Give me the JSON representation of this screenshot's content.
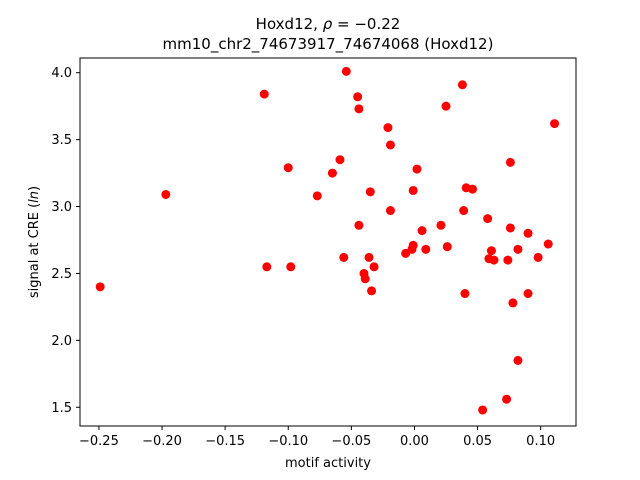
{
  "chart_data": {
    "type": "scatter",
    "title_line1_prefix": "Hoxd12, ",
    "title_line1_rho_symbol": "ρ",
    "title_line1_rho_value": " = −0.22",
    "title_line2": "mm10_chr2_74673917_74674068 (Hoxd12)",
    "xlabel": "motif activity",
    "ylabel_prefix": "signal at CRE (",
    "ylabel_italic": "ln",
    "ylabel_suffix": ")",
    "xlim": [
      -0.265,
      0.128
    ],
    "ylim": [
      1.36,
      4.11
    ],
    "x_ticks": [
      {
        "value": -0.25,
        "label": "−0.25"
      },
      {
        "value": -0.2,
        "label": "−0.20"
      },
      {
        "value": -0.15,
        "label": "−0.15"
      },
      {
        "value": -0.1,
        "label": "−0.10"
      },
      {
        "value": -0.05,
        "label": "−0.05"
      },
      {
        "value": 0.0,
        "label": "0.00"
      },
      {
        "value": 0.05,
        "label": "0.05"
      },
      {
        "value": 0.1,
        "label": "0.10"
      }
    ],
    "y_ticks": [
      {
        "value": 1.5,
        "label": "1.5"
      },
      {
        "value": 2.0,
        "label": "2.0"
      },
      {
        "value": 2.5,
        "label": "2.5"
      },
      {
        "value": 3.0,
        "label": "3.0"
      },
      {
        "value": 3.5,
        "label": "3.5"
      },
      {
        "value": 4.0,
        "label": "4.0"
      }
    ],
    "marker_color": "#ff0000",
    "grid": false,
    "points": [
      {
        "x": -0.249,
        "y": 2.4
      },
      {
        "x": -0.197,
        "y": 3.09
      },
      {
        "x": -0.119,
        "y": 3.84
      },
      {
        "x": -0.117,
        "y": 2.55
      },
      {
        "x": -0.1,
        "y": 3.29
      },
      {
        "x": -0.098,
        "y": 2.55
      },
      {
        "x": -0.077,
        "y": 3.08
      },
      {
        "x": -0.065,
        "y": 3.25
      },
      {
        "x": -0.059,
        "y": 3.35
      },
      {
        "x": -0.056,
        "y": 2.62
      },
      {
        "x": -0.054,
        "y": 4.01
      },
      {
        "x": -0.045,
        "y": 3.82
      },
      {
        "x": -0.044,
        "y": 3.73
      },
      {
        "x": -0.044,
        "y": 2.86
      },
      {
        "x": -0.04,
        "y": 2.5
      },
      {
        "x": -0.039,
        "y": 2.46
      },
      {
        "x": -0.036,
        "y": 2.62
      },
      {
        "x": -0.035,
        "y": 3.11
      },
      {
        "x": -0.034,
        "y": 2.37
      },
      {
        "x": -0.032,
        "y": 2.55
      },
      {
        "x": -0.021,
        "y": 3.59
      },
      {
        "x": -0.019,
        "y": 3.46
      },
      {
        "x": -0.019,
        "y": 2.97
      },
      {
        "x": -0.007,
        "y": 2.65
      },
      {
        "x": -0.002,
        "y": 2.68
      },
      {
        "x": -0.001,
        "y": 3.12
      },
      {
        "x": -0.001,
        "y": 2.71
      },
      {
        "x": 0.002,
        "y": 3.28
      },
      {
        "x": 0.006,
        "y": 2.82
      },
      {
        "x": 0.009,
        "y": 2.68
      },
      {
        "x": 0.021,
        "y": 2.86
      },
      {
        "x": 0.025,
        "y": 3.75
      },
      {
        "x": 0.026,
        "y": 2.7
      },
      {
        "x": 0.038,
        "y": 3.91
      },
      {
        "x": 0.039,
        "y": 2.97
      },
      {
        "x": 0.04,
        "y": 2.35
      },
      {
        "x": 0.041,
        "y": 3.14
      },
      {
        "x": 0.046,
        "y": 3.13
      },
      {
        "x": 0.054,
        "y": 1.48
      },
      {
        "x": 0.058,
        "y": 2.91
      },
      {
        "x": 0.059,
        "y": 2.61
      },
      {
        "x": 0.061,
        "y": 2.67
      },
      {
        "x": 0.063,
        "y": 2.6
      },
      {
        "x": 0.073,
        "y": 1.56
      },
      {
        "x": 0.074,
        "y": 2.6
      },
      {
        "x": 0.076,
        "y": 3.33
      },
      {
        "x": 0.076,
        "y": 2.84
      },
      {
        "x": 0.078,
        "y": 2.28
      },
      {
        "x": 0.082,
        "y": 1.85
      },
      {
        "x": 0.082,
        "y": 2.68
      },
      {
        "x": 0.09,
        "y": 2.8
      },
      {
        "x": 0.09,
        "y": 2.35
      },
      {
        "x": 0.098,
        "y": 2.62
      },
      {
        "x": 0.106,
        "y": 2.72
      },
      {
        "x": 0.111,
        "y": 3.62
      }
    ]
  }
}
